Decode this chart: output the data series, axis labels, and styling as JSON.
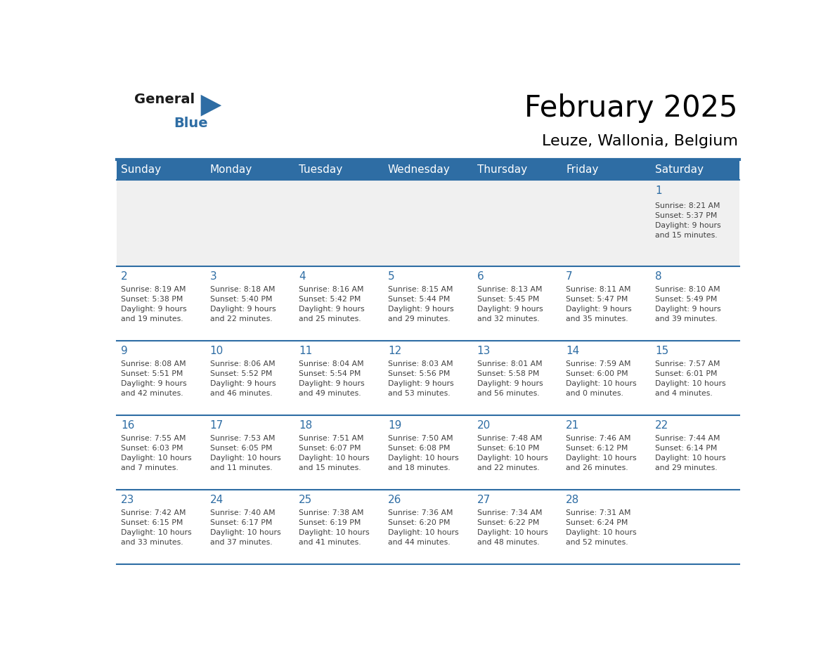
{
  "title": "February 2025",
  "subtitle": "Leuze, Wallonia, Belgium",
  "header_bg": "#2E6DA4",
  "header_text_color": "#FFFFFF",
  "cell_bg": "#FFFFFF",
  "first_row_bg": "#F0F0F0",
  "day_number_color": "#2E6DA4",
  "info_text_color": "#404040",
  "grid_line_color": "#2E6DA4",
  "days_of_week": [
    "Sunday",
    "Monday",
    "Tuesday",
    "Wednesday",
    "Thursday",
    "Friday",
    "Saturday"
  ],
  "weeks": [
    [
      {
        "day": null,
        "info": ""
      },
      {
        "day": null,
        "info": ""
      },
      {
        "day": null,
        "info": ""
      },
      {
        "day": null,
        "info": ""
      },
      {
        "day": null,
        "info": ""
      },
      {
        "day": null,
        "info": ""
      },
      {
        "day": 1,
        "info": "Sunrise: 8:21 AM\nSunset: 5:37 PM\nDaylight: 9 hours\nand 15 minutes."
      }
    ],
    [
      {
        "day": 2,
        "info": "Sunrise: 8:19 AM\nSunset: 5:38 PM\nDaylight: 9 hours\nand 19 minutes."
      },
      {
        "day": 3,
        "info": "Sunrise: 8:18 AM\nSunset: 5:40 PM\nDaylight: 9 hours\nand 22 minutes."
      },
      {
        "day": 4,
        "info": "Sunrise: 8:16 AM\nSunset: 5:42 PM\nDaylight: 9 hours\nand 25 minutes."
      },
      {
        "day": 5,
        "info": "Sunrise: 8:15 AM\nSunset: 5:44 PM\nDaylight: 9 hours\nand 29 minutes."
      },
      {
        "day": 6,
        "info": "Sunrise: 8:13 AM\nSunset: 5:45 PM\nDaylight: 9 hours\nand 32 minutes."
      },
      {
        "day": 7,
        "info": "Sunrise: 8:11 AM\nSunset: 5:47 PM\nDaylight: 9 hours\nand 35 minutes."
      },
      {
        "day": 8,
        "info": "Sunrise: 8:10 AM\nSunset: 5:49 PM\nDaylight: 9 hours\nand 39 minutes."
      }
    ],
    [
      {
        "day": 9,
        "info": "Sunrise: 8:08 AM\nSunset: 5:51 PM\nDaylight: 9 hours\nand 42 minutes."
      },
      {
        "day": 10,
        "info": "Sunrise: 8:06 AM\nSunset: 5:52 PM\nDaylight: 9 hours\nand 46 minutes."
      },
      {
        "day": 11,
        "info": "Sunrise: 8:04 AM\nSunset: 5:54 PM\nDaylight: 9 hours\nand 49 minutes."
      },
      {
        "day": 12,
        "info": "Sunrise: 8:03 AM\nSunset: 5:56 PM\nDaylight: 9 hours\nand 53 minutes."
      },
      {
        "day": 13,
        "info": "Sunrise: 8:01 AM\nSunset: 5:58 PM\nDaylight: 9 hours\nand 56 minutes."
      },
      {
        "day": 14,
        "info": "Sunrise: 7:59 AM\nSunset: 6:00 PM\nDaylight: 10 hours\nand 0 minutes."
      },
      {
        "day": 15,
        "info": "Sunrise: 7:57 AM\nSunset: 6:01 PM\nDaylight: 10 hours\nand 4 minutes."
      }
    ],
    [
      {
        "day": 16,
        "info": "Sunrise: 7:55 AM\nSunset: 6:03 PM\nDaylight: 10 hours\nand 7 minutes."
      },
      {
        "day": 17,
        "info": "Sunrise: 7:53 AM\nSunset: 6:05 PM\nDaylight: 10 hours\nand 11 minutes."
      },
      {
        "day": 18,
        "info": "Sunrise: 7:51 AM\nSunset: 6:07 PM\nDaylight: 10 hours\nand 15 minutes."
      },
      {
        "day": 19,
        "info": "Sunrise: 7:50 AM\nSunset: 6:08 PM\nDaylight: 10 hours\nand 18 minutes."
      },
      {
        "day": 20,
        "info": "Sunrise: 7:48 AM\nSunset: 6:10 PM\nDaylight: 10 hours\nand 22 minutes."
      },
      {
        "day": 21,
        "info": "Sunrise: 7:46 AM\nSunset: 6:12 PM\nDaylight: 10 hours\nand 26 minutes."
      },
      {
        "day": 22,
        "info": "Sunrise: 7:44 AM\nSunset: 6:14 PM\nDaylight: 10 hours\nand 29 minutes."
      }
    ],
    [
      {
        "day": 23,
        "info": "Sunrise: 7:42 AM\nSunset: 6:15 PM\nDaylight: 10 hours\nand 33 minutes."
      },
      {
        "day": 24,
        "info": "Sunrise: 7:40 AM\nSunset: 6:17 PM\nDaylight: 10 hours\nand 37 minutes."
      },
      {
        "day": 25,
        "info": "Sunrise: 7:38 AM\nSunset: 6:19 PM\nDaylight: 10 hours\nand 41 minutes."
      },
      {
        "day": 26,
        "info": "Sunrise: 7:36 AM\nSunset: 6:20 PM\nDaylight: 10 hours\nand 44 minutes."
      },
      {
        "day": 27,
        "info": "Sunrise: 7:34 AM\nSunset: 6:22 PM\nDaylight: 10 hours\nand 48 minutes."
      },
      {
        "day": 28,
        "info": "Sunrise: 7:31 AM\nSunset: 6:24 PM\nDaylight: 10 hours\nand 52 minutes."
      },
      {
        "day": null,
        "info": ""
      }
    ]
  ],
  "logo_general_color": "#1a1a1a",
  "logo_blue_color": "#2E6DA4",
  "logo_triangle_color": "#2E6DA4"
}
